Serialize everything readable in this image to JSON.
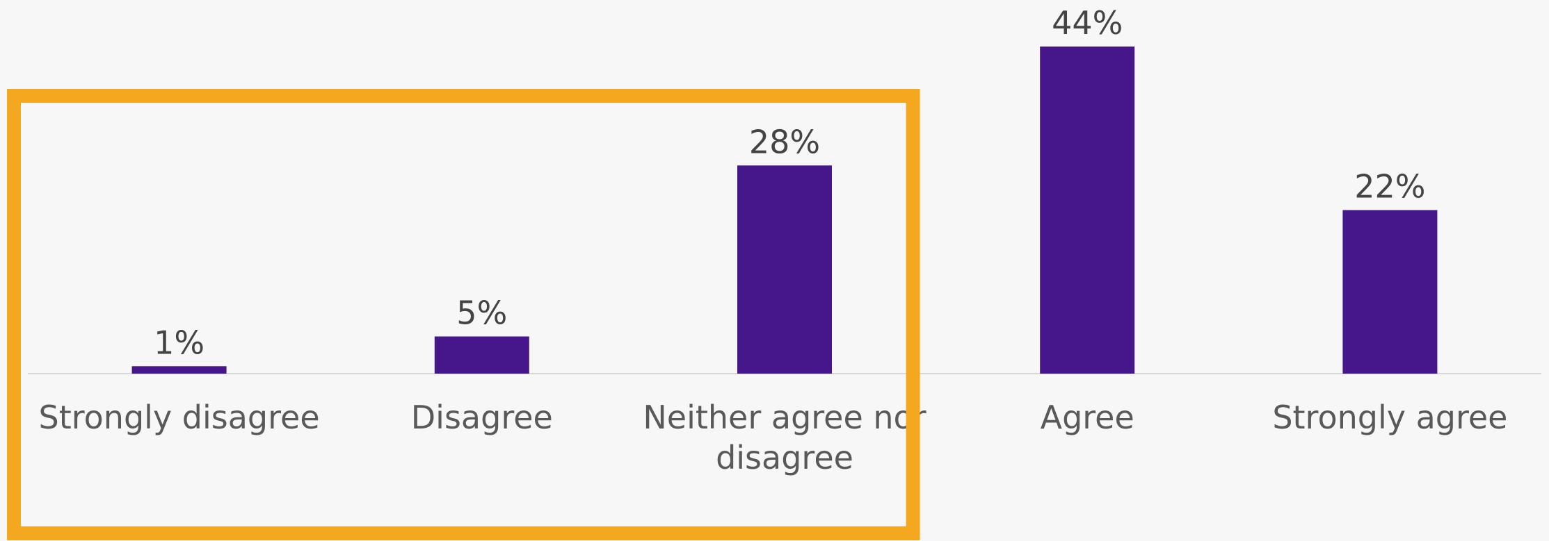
{
  "chart_data": {
    "type": "bar",
    "categories": [
      "Strongly disagree",
      "Disagree",
      "Neither agree nor disagree",
      "Agree",
      "Strongly agree"
    ],
    "category_lines": [
      [
        "Strongly disagree"
      ],
      [
        "Disagree"
      ],
      [
        "Neither agree nor",
        "disagree"
      ],
      [
        "Agree"
      ],
      [
        "Strongly agree"
      ]
    ],
    "values": [
      1,
      5,
      28,
      44,
      22
    ],
    "value_labels": [
      "1%",
      "5%",
      "28%",
      "44%",
      "22%"
    ],
    "unit": "%",
    "ylim": [
      0,
      44
    ],
    "grid": false,
    "legend": "none",
    "highlight": {
      "categories": [
        "Strongly disagree",
        "Disagree",
        "Neither agree nor disagree"
      ]
    }
  },
  "colors": {
    "bar": "#46178a",
    "highlight_border": "#f4a81f",
    "baseline": "#d9d9d9",
    "data_label": "#444444",
    "category_label": "#595959",
    "background": "#f7f7f7"
  }
}
